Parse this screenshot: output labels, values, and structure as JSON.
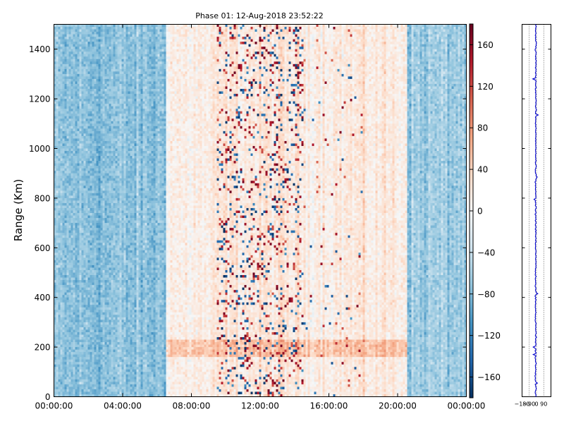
{
  "chart_data": {
    "type": "heatmap",
    "title": "Phase 01: 12-Aug-2018 23:52:22",
    "ylabel": "Range (Km)",
    "xlabel": "",
    "xlim": [
      "00:00:00",
      "24:00:00"
    ],
    "x_ticks": [
      "00:00:00",
      "04:00:00",
      "08:00:00",
      "12:00:00",
      "16:00:00",
      "20:00:00",
      "00:00:00"
    ],
    "ylim": [
      0,
      1500
    ],
    "y_ticks": [
      0,
      200,
      400,
      600,
      800,
      1000,
      1200,
      1400
    ],
    "colorbar": {
      "range": [
        -180,
        180
      ],
      "ticks": [
        -160,
        -120,
        -80,
        -40,
        0,
        40,
        80,
        120,
        160
      ],
      "colormap": "RdBu_r",
      "low_color": "#053061",
      "mid_color": "#f7f7f7",
      "high_color": "#67001f"
    },
    "profile": {
      "type": "line",
      "xlim": [
        -180,
        180
      ],
      "x_ticks": [
        -180,
        -90,
        0,
        90
      ],
      "x_tick_labels": [
        "−180",
        "−90",
        "0",
        "90"
      ],
      "color": "#0000cc",
      "approx_value": -10
    },
    "phase_bands_hours": [
      {
        "from": 0.0,
        "to": 6.5,
        "mean": -75
      },
      {
        "from": 6.5,
        "to": 9.5,
        "mean": 12
      },
      {
        "from": 9.5,
        "to": 14.5,
        "mean": 20
      },
      {
        "from": 14.5,
        "to": 20.6,
        "mean": 18
      },
      {
        "from": 20.6,
        "to": 24.0,
        "mean": -65
      }
    ]
  }
}
